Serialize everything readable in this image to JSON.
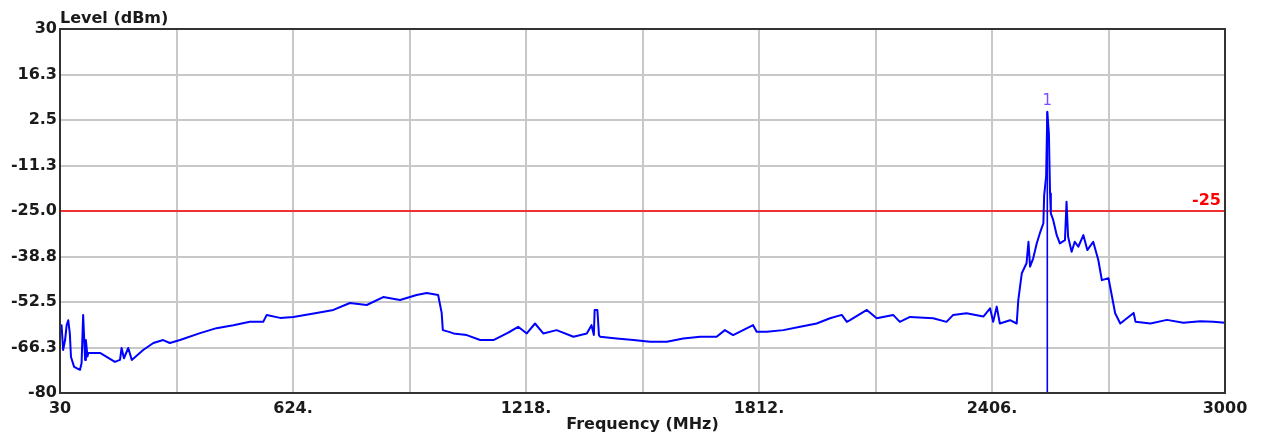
{
  "chart_data": {
    "type": "line",
    "xlabel": "Frequency (MHz)",
    "ylabel": "Level (dBm)",
    "xlim": [
      30,
      3000
    ],
    "ylim": [
      -80,
      30
    ],
    "xticks": [
      30,
      {
        "value": 327,
        "label": null
      },
      {
        "value": 624,
        "label": "624."
      },
      {
        "value": 921,
        "label": null
      },
      {
        "value": 1218,
        "label": "1218."
      },
      {
        "value": 1515,
        "label": null
      },
      {
        "value": 1812,
        "label": "1812."
      },
      {
        "value": 2109,
        "label": null
      },
      {
        "value": 2406,
        "label": "2406."
      },
      {
        "value": 2703,
        "label": null
      },
      3000
    ],
    "yticks": [
      30,
      {
        "value": 16.25,
        "label": "16.3"
      },
      2.5,
      {
        "value": -11.25,
        "label": "-11.3"
      },
      {
        "value": -25,
        "label": "-25.0"
      },
      {
        "value": -38.75,
        "label": "-38.8"
      },
      -52.5,
      {
        "value": -66.25,
        "label": "-66.3"
      },
      -80
    ],
    "grid": true,
    "ref_lines": [
      {
        "axis": "y",
        "value": -25,
        "label": "-25",
        "color": "#ff0000"
      },
      {
        "axis": "x",
        "value": 2547,
        "color": "#0000ff"
      }
    ],
    "annotations": [
      {
        "text": "1",
        "x": 2547,
        "y": 5.0
      }
    ],
    "x": [
      30,
      34,
      38,
      43,
      47,
      51,
      55,
      58,
      66,
      81,
      85,
      89,
      94,
      96,
      100,
      102,
      115,
      132,
      149,
      170,
      183,
      187,
      193,
      204,
      213,
      242,
      268,
      293,
      310,
      336,
      387,
      429,
      472,
      514,
      548,
      557,
      591,
      625,
      684,
      727,
      769,
      812,
      854,
      897,
      939,
      965,
      994,
      1003,
      1006,
      1024,
      1033,
      1067,
      1101,
      1135,
      1169,
      1198,
      1220,
      1241,
      1262,
      1296,
      1339,
      1373,
      1385,
      1391,
      1393,
      1400,
      1404,
      1407,
      1449,
      1492,
      1534,
      1577,
      1619,
      1662,
      1704,
      1725,
      1746,
      1797,
      1806,
      1832,
      1874,
      1917,
      1959,
      1993,
      2023,
      2036,
      2044,
      2087,
      2112,
      2154,
      2171,
      2197,
      2256,
      2290,
      2307,
      2341,
      2384,
      2401,
      2409,
      2418,
      2426,
      2452,
      2469,
      2473,
      2482,
      2494,
      2499,
      2503,
      2511,
      2520,
      2528,
      2537,
      2539,
      2544,
      2547,
      2551,
      2554,
      2556,
      2562,
      2571,
      2579,
      2592,
      2596,
      2600,
      2609,
      2617,
      2626,
      2639,
      2649,
      2664,
      2677,
      2686,
      2703,
      2712,
      2720,
      2733,
      2767,
      2772,
      2810,
      2852,
      2894,
      2937,
      2970,
      3000
    ],
    "series": [
      {
        "color": "#0000ff",
        "values": [
          -59.5,
          -59.5,
          -67.0,
          -64.0,
          -59.5,
          -58.0,
          -61.9,
          -69.1,
          -72.1,
          -73.0,
          -71.0,
          -56.4,
          -70.0,
          -64.0,
          -69.0,
          -67.9,
          -67.9,
          -67.9,
          -69.1,
          -70.6,
          -70.0,
          -66.4,
          -69.5,
          -66.4,
          -70.0,
          -67.0,
          -64.9,
          -64.0,
          -64.9,
          -64.0,
          -61.9,
          -60.4,
          -59.5,
          -58.5,
          -58.5,
          -56.4,
          -57.3,
          -57.0,
          -55.8,
          -54.9,
          -52.8,
          -53.4,
          -51.0,
          -51.9,
          -50.4,
          -49.8,
          -50.4,
          -55.8,
          -61.0,
          -61.6,
          -62.0,
          -62.5,
          -64.0,
          -64.0,
          -62.0,
          -60.0,
          -62.0,
          -59.0,
          -62.0,
          -61.0,
          -63.0,
          -62.0,
          -59.5,
          -62.5,
          -54.9,
          -54.9,
          -62.5,
          -63.0,
          -63.5,
          -64.0,
          -64.5,
          -64.5,
          -63.5,
          -63.0,
          -63.0,
          -61.0,
          -62.5,
          -59.5,
          -61.5,
          -61.5,
          -61.0,
          -60.0,
          -59.0,
          -57.4,
          -56.4,
          -58.5,
          -58.0,
          -54.9,
          -57.4,
          -56.4,
          -58.5,
          -57.0,
          -57.4,
          -58.5,
          -56.4,
          -55.9,
          -56.9,
          -54.4,
          -58.5,
          -53.9,
          -59.0,
          -58.0,
          -59.0,
          -51.9,
          -43.8,
          -40.8,
          -34.3,
          -41.8,
          -39.3,
          -34.8,
          -31.7,
          -28.7,
          -20.2,
          -14.6,
          5.0,
          -1.5,
          -19.7,
          -25.7,
          -27.7,
          -32.3,
          -34.8,
          -33.8,
          -22.2,
          -32.8,
          -37.3,
          -34.3,
          -35.8,
          -32.3,
          -36.8,
          -34.3,
          -39.8,
          -45.9,
          -45.3,
          -50.9,
          -55.9,
          -59.0,
          -55.8,
          -58.5,
          -59.0,
          -57.9,
          -58.8,
          -58.3,
          -58.5,
          -58.8
        ]
      }
    ]
  }
}
